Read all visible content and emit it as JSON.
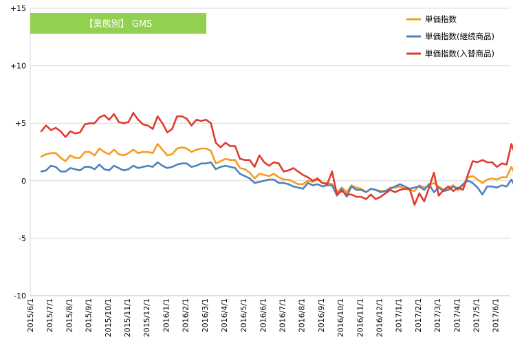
{
  "chart_data": {
    "type": "line",
    "title": "【業態別】 GMS",
    "title_box_color": "#92D050",
    "grid": true,
    "legend_position": "top-right",
    "ylim": [
      -10,
      15
    ],
    "y_ticks": [
      {
        "value": 15,
        "label": "+15"
      },
      {
        "value": 10,
        "label": "+10"
      },
      {
        "value": 5,
        "label": "+5"
      },
      {
        "value": 0,
        "label": "0"
      },
      {
        "value": -5,
        "label": "-5"
      },
      {
        "value": -10,
        "label": "-10"
      }
    ],
    "x_tick_labels": [
      "2015/6/1",
      "2015/7/1",
      "2015/8/1",
      "2015/9/1",
      "2015/10/1",
      "2015/11/1",
      "2015/12/1",
      "2016/1/1",
      "2016/2/1",
      "2016/3/1",
      "2016/4/1",
      "2016/5/1",
      "2016/6/1",
      "2016/7/1",
      "2016/8/1",
      "2016/9/1",
      "2016/10/1",
      "2016/11/1",
      "2016/12/1",
      "2017/1/1",
      "2017/2/1",
      "2017/3/1",
      "2017/4/1",
      "2017/5/1",
      "2017/6/1"
    ],
    "x_start": "2015-06-01",
    "points_per_month": 4,
    "series": [
      {
        "name": "単価指数",
        "color": "#F79A1E",
        "values": [
          2.1,
          2.3,
          2.4,
          2.4,
          2.0,
          1.7,
          2.2,
          2.0,
          2.0,
          2.5,
          2.5,
          2.2,
          2.8,
          2.5,
          2.3,
          2.7,
          2.3,
          2.2,
          2.4,
          2.7,
          2.4,
          2.5,
          2.5,
          2.4,
          3.2,
          2.7,
          2.2,
          2.3,
          2.8,
          2.9,
          2.8,
          2.5,
          2.7,
          2.8,
          2.8,
          2.6,
          1.5,
          1.7,
          1.9,
          1.8,
          1.8,
          1.1,
          1.0,
          0.7,
          0.2,
          0.6,
          0.5,
          0.4,
          0.6,
          0.3,
          0.1,
          0.1,
          -0.1,
          -0.3,
          -0.3,
          0.0,
          -0.1,
          0.1,
          -0.2,
          -0.2,
          -0.3,
          -1.0,
          -0.6,
          -1.0,
          -0.4,
          -0.6,
          -0.7,
          -1.0,
          -0.7,
          -0.8,
          -0.9,
          -0.9,
          -0.6,
          -0.6,
          -0.5,
          -0.7,
          -0.8,
          -0.9,
          -0.4,
          -0.6,
          -0.4,
          -0.2,
          -0.5,
          -0.8,
          -0.6,
          -0.4,
          -0.8,
          -0.4,
          0.3,
          0.4,
          0.1,
          -0.2,
          0.1,
          0.2,
          0.1,
          0.3,
          0.3,
          1.2,
          0.3,
          0.5,
          0.6,
          0.8,
          1.1
        ]
      },
      {
        "name": "単価指数(継続商品)",
        "color": "#4F81BD",
        "values": [
          0.8,
          0.9,
          1.3,
          1.2,
          0.8,
          0.8,
          1.1,
          1.0,
          0.9,
          1.2,
          1.2,
          1.0,
          1.4,
          1.0,
          0.9,
          1.3,
          1.1,
          0.9,
          1.0,
          1.3,
          1.1,
          1.2,
          1.3,
          1.2,
          1.6,
          1.3,
          1.1,
          1.2,
          1.4,
          1.5,
          1.5,
          1.2,
          1.3,
          1.5,
          1.5,
          1.6,
          1.0,
          1.2,
          1.3,
          1.2,
          1.1,
          0.6,
          0.4,
          0.2,
          -0.2,
          -0.1,
          0.0,
          0.1,
          0.1,
          -0.2,
          -0.2,
          -0.3,
          -0.5,
          -0.6,
          -0.7,
          -0.2,
          -0.4,
          -0.3,
          -0.5,
          -0.4,
          -0.4,
          -1.3,
          -0.7,
          -1.4,
          -0.5,
          -0.8,
          -0.8,
          -1.0,
          -0.7,
          -0.8,
          -1.0,
          -0.9,
          -0.7,
          -0.5,
          -0.3,
          -0.5,
          -0.7,
          -0.6,
          -0.5,
          -0.8,
          -0.3,
          -1.0,
          -0.6,
          -0.9,
          -0.8,
          -0.5,
          -0.7,
          -0.3,
          0.0,
          -0.2,
          -0.6,
          -1.2,
          -0.5,
          -0.5,
          -0.6,
          -0.4,
          -0.5,
          0.1,
          -0.7,
          -0.4,
          -0.3,
          -0.1,
          0.1
        ]
      },
      {
        "name": "単価指数(入替商品)",
        "color": "#E03A2E",
        "values": [
          4.3,
          4.8,
          4.4,
          4.6,
          4.3,
          3.8,
          4.3,
          4.1,
          4.2,
          4.9,
          5.0,
          5.0,
          5.5,
          5.7,
          5.3,
          5.8,
          5.1,
          5.0,
          5.1,
          5.9,
          5.3,
          4.9,
          4.8,
          4.5,
          5.6,
          5.0,
          4.2,
          4.5,
          5.6,
          5.6,
          5.4,
          4.8,
          5.3,
          5.2,
          5.3,
          5.0,
          3.3,
          2.9,
          3.3,
          3.0,
          3.0,
          1.9,
          1.8,
          1.8,
          1.2,
          2.2,
          1.6,
          1.3,
          1.6,
          1.5,
          0.8,
          0.9,
          1.1,
          0.8,
          0.5,
          0.3,
          0.0,
          0.2,
          -0.2,
          -0.3,
          0.8,
          -1.2,
          -0.9,
          -1.2,
          -1.2,
          -1.4,
          -1.4,
          -1.6,
          -1.2,
          -1.6,
          -1.4,
          -1.1,
          -0.8,
          -1.0,
          -0.8,
          -0.7,
          -0.7,
          -2.1,
          -1.1,
          -1.8,
          -0.6,
          0.7,
          -1.3,
          -0.8,
          -0.5,
          -0.9,
          -0.6,
          -0.8,
          0.5,
          1.7,
          1.6,
          1.8,
          1.6,
          1.6,
          1.2,
          1.5,
          1.4,
          3.2,
          2.0,
          2.0,
          1.9,
          2.2,
          2.2
        ]
      }
    ]
  }
}
